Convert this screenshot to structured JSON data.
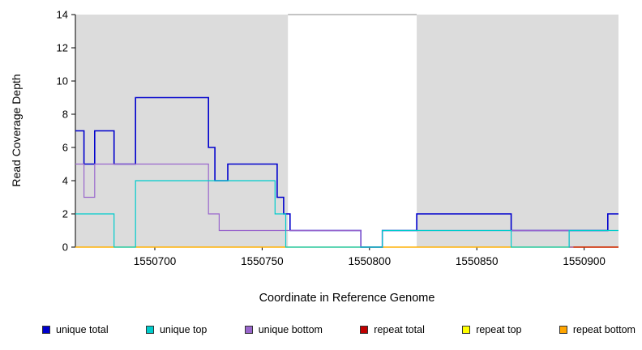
{
  "chart_data": {
    "type": "line",
    "step": true,
    "title": "",
    "xlabel": "Coordinate in Reference Genome",
    "ylabel": "Read Coverage Depth",
    "xlim": [
      1550663,
      1550916
    ],
    "ylim": [
      0,
      14
    ],
    "x_ticks": [
      1550700,
      1550750,
      1550800,
      1550850,
      1550900
    ],
    "y_ticks": [
      0,
      2,
      4,
      6,
      8,
      10,
      12,
      14
    ],
    "grid": false,
    "legend_position": "bottom",
    "shaded_region_color": "#DCDCDC",
    "shaded_regions": [
      {
        "x0": 1550663,
        "x1": 1550762
      },
      {
        "x0": 1550822,
        "x1": 1550916
      }
    ],
    "gap_top_line": {
      "x0": 1550762,
      "x1": 1550822,
      "y": 14,
      "color": "#888888"
    },
    "draw_order": [
      "repeat top",
      "repeat bottom",
      "repeat total",
      "unique total",
      "unique bottom",
      "unique top"
    ],
    "series": [
      {
        "name": "unique total",
        "color": "#0000CD",
        "width": 1.6,
        "points": [
          [
            1550663,
            7
          ],
          [
            1550667,
            5
          ],
          [
            1550672,
            7
          ],
          [
            1550681,
            5
          ],
          [
            1550691,
            9
          ],
          [
            1550725,
            6
          ],
          [
            1550728,
            4
          ],
          [
            1550734,
            5
          ],
          [
            1550757,
            3
          ],
          [
            1550760,
            2
          ],
          [
            1550763,
            1
          ],
          [
            1550796,
            0
          ],
          [
            1550806,
            1
          ],
          [
            1550822,
            2
          ],
          [
            1550866,
            1
          ],
          [
            1550911,
            2
          ]
        ],
        "end": 1550916
      },
      {
        "name": "unique top",
        "color": "#00CCCC",
        "width": 1.2,
        "points": [
          [
            1550663,
            2
          ],
          [
            1550681,
            0
          ],
          [
            1550691,
            4
          ],
          [
            1550756,
            2
          ],
          [
            1550761,
            0
          ],
          [
            1550806,
            1
          ],
          [
            1550866,
            0
          ],
          [
            1550893,
            1
          ]
        ],
        "end": 1550916
      },
      {
        "name": "unique bottom",
        "color": "#9966CC",
        "width": 1.2,
        "points": [
          [
            1550663,
            5
          ],
          [
            1550667,
            3
          ],
          [
            1550672,
            5
          ],
          [
            1550725,
            2
          ],
          [
            1550730,
            1
          ],
          [
            1550796,
            0
          ],
          [
            1550806,
            1
          ],
          [
            1550893,
            0
          ]
        ],
        "end": 1550895
      },
      {
        "name": "repeat total",
        "color": "#C00000",
        "width": 1.2,
        "points": [
          [
            1550893,
            0
          ]
        ],
        "end": 1550916
      },
      {
        "name": "repeat top",
        "color": "#FFFF00",
        "width": 1.2,
        "points": [
          [
            1550663,
            0
          ]
        ],
        "end": 1550916
      },
      {
        "name": "repeat bottom",
        "color": "#FFA500",
        "width": 1.2,
        "points": [
          [
            1550663,
            0
          ]
        ],
        "end": 1550916
      }
    ]
  }
}
